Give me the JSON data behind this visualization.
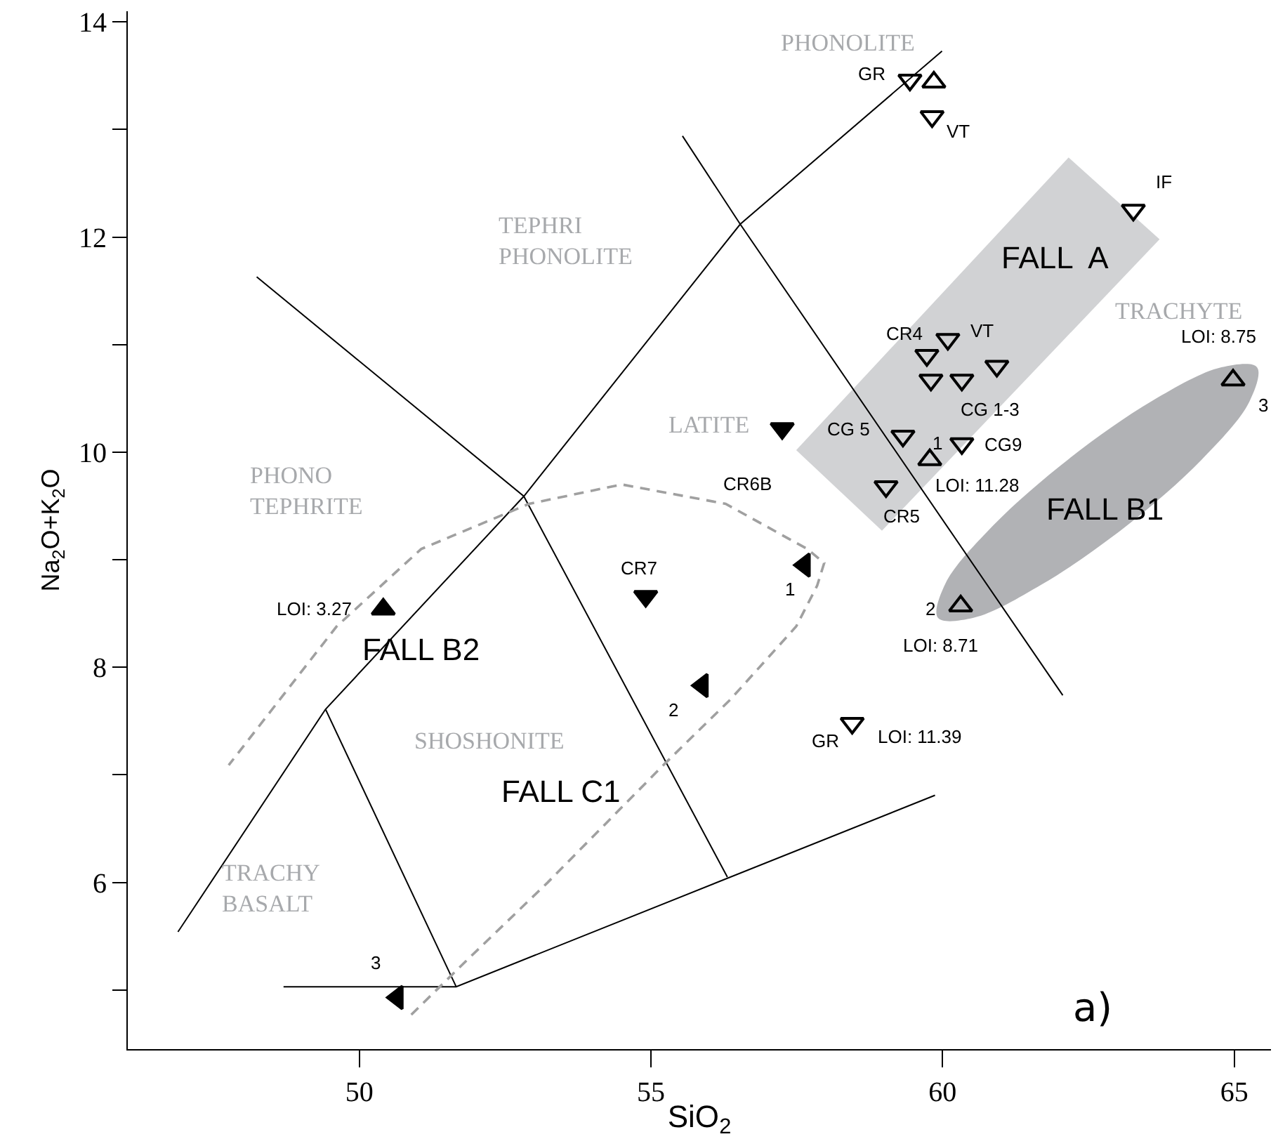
{
  "chart_data": {
    "type": "scatter",
    "xlabel": "SiO$_{2}$",
    "ylabel": "Na$_{2}$O+K$_{2}$O",
    "xlim": [
      46.03,
      65.63
    ],
    "ylim": [
      4.45,
      14.1
    ],
    "xticks": [
      50,
      55,
      60,
      65
    ],
    "yticks": [
      {
        "value": 5,
        "label": null
      },
      6,
      {
        "value": 7,
        "label": null
      },
      8,
      {
        "value": 9,
        "label": null
      },
      10,
      {
        "value": 11,
        "label": null
      },
      12,
      {
        "value": 13,
        "label": null
      },
      14
    ],
    "series": [
      {
        "type": "area",
        "color": "#d1d2d4",
        "x": [
          62.16,
          63.72,
          58.96,
          57.49,
          62.16
        ],
        "values": [
          12.74,
          11.98,
          9.27,
          10.02,
          12.74
        ]
      },
      {
        "type": "area",
        "color": "#b1b2b5",
        "x": [
          65.39,
          65.26,
          64.44,
          63.14,
          61.7,
          60.53,
          59.92,
          60.05,
          60.87,
          62.17,
          63.6,
          64.78,
          65.39
        ],
        "values": [
          10.79,
          10.47,
          9.93,
          9.31,
          8.77,
          8.46,
          8.46,
          8.78,
          9.32,
          9.94,
          10.48,
          10.79,
          10.79
        ]
      },
      {
        "type": "line",
        "color": "#000000",
        "line_style": "solid",
        "marker": "none",
        "x": [
          46.89,
          49.42,
          52.82,
          56.53,
          59.99
        ],
        "values": [
          5.54,
          7.61,
          9.59,
          12.12,
          13.73
        ]
      },
      {
        "type": "line",
        "color": "#000000",
        "line_style": "solid",
        "marker": "none",
        "x": [
          48.24,
          52.82,
          56.31
        ],
        "values": [
          11.63,
          9.59,
          6.05
        ]
      },
      {
        "type": "line",
        "color": "#000000",
        "line_style": "solid",
        "marker": "none",
        "x": [
          55.54,
          56.53,
          62.06
        ],
        "values": [
          12.94,
          12.12,
          7.74
        ]
      },
      {
        "type": "line",
        "color": "#000000",
        "line_style": "solid",
        "marker": "none",
        "x": [
          49.42,
          51.66
        ],
        "values": [
          7.61,
          5.03
        ]
      },
      {
        "type": "line",
        "color": "#000000",
        "line_style": "solid",
        "marker": "none",
        "x": [
          48.7,
          51.66,
          59.87
        ],
        "values": [
          5.03,
          5.03,
          6.81
        ]
      },
      {
        "type": "line",
        "color": "#a0a0a0",
        "line_style": "dashed",
        "marker": "none",
        "x": [
          50.89,
          51.85,
          53.23,
          55.23,
          56.36,
          57.49,
          57.85,
          57.97,
          57.68,
          56.28,
          54.5,
          52.91,
          51.06,
          49.61,
          47.76
        ],
        "values": [
          4.77,
          5.28,
          6.0,
          7.1,
          7.7,
          8.38,
          8.76,
          8.97,
          9.1,
          9.52,
          9.7,
          9.52,
          9.1,
          8.38,
          7.09
        ]
      },
      {
        "color": "#000000",
        "marker": "triangle-down-open",
        "x": [
          59.44,
          59.82,
          63.27,
          60.09,
          59.73,
          60.93,
          59.8,
          60.33,
          59.32,
          60.33,
          59.03,
          58.45
        ],
        "values": [
          13.46,
          13.12,
          12.25,
          11.05,
          10.9,
          10.8,
          10.67,
          10.67,
          10.15,
          10.08,
          9.68,
          7.48
        ]
      },
      {
        "color": "#000000",
        "marker": "triangle-up-open",
        "x": [
          59.85,
          64.98,
          59.78,
          60.31
        ],
        "values": [
          13.44,
          10.67,
          9.93,
          8.57
        ]
      },
      {
        "color": "#000000",
        "marker": "triangle-down",
        "x": [
          57.25,
          54.91
        ],
        "values": [
          10.22,
          8.66
        ]
      },
      {
        "color": "#000000",
        "marker": "triangle-left",
        "x": [
          57.63,
          55.88,
          50.65
        ],
        "values": [
          8.95,
          7.83,
          4.93
        ]
      },
      {
        "color": "#000000",
        "marker": "triangle-up",
        "x": [
          50.41
        ],
        "values": [
          8.54
        ]
      }
    ],
    "annotations": [
      "PHONOLITE",
      "TEPHRI\nPHONOLITE",
      "LATITE",
      "TRACHYTE",
      "PHONO\nTEPHRITE",
      "SHOSHONITE",
      "TRACHY\nBASALT",
      "FALL  A",
      "FALL B1",
      "FALL B2",
      "FALL C1",
      "a)",
      "GR",
      "VT",
      "IF",
      "CR4",
      "VT",
      "CG 1-3",
      "CG 5",
      "1",
      "CG9",
      "LOI: 11.28",
      "CR5",
      "LOI: 8.75",
      "3",
      "CR6B",
      "CR7",
      "1",
      "2",
      "3",
      "LOI: 3.27",
      "2",
      "LOI: 8.71",
      "GR",
      "LOI: 11.39"
    ]
  }
}
